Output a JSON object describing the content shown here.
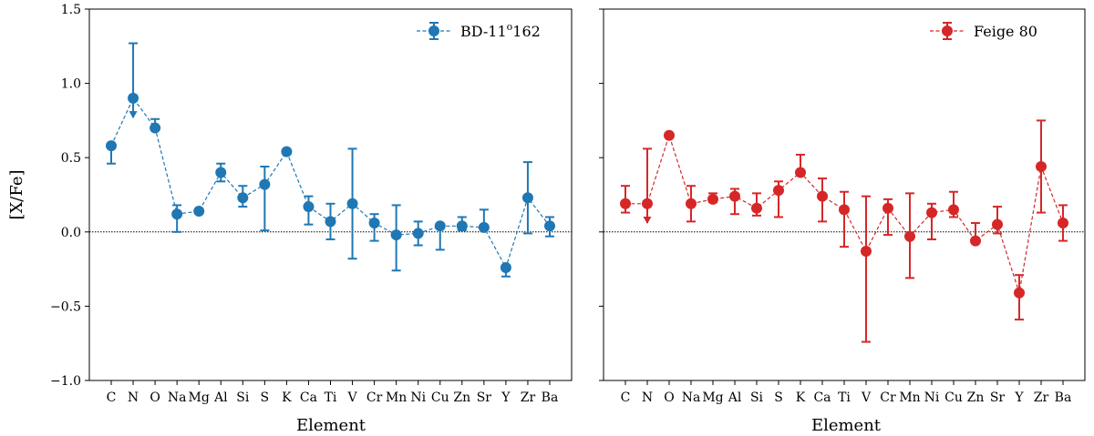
{
  "figure": {
    "ylabel": "[X/Fe]",
    "xlabel": "Element"
  },
  "chart_data": [
    {
      "type": "line",
      "series_name": "BD-11°162",
      "legend_label": "BD-11",
      "legend_sup": "o",
      "legend_tail": "162",
      "color": "#1f77b4",
      "legend_position": "top-right",
      "xlabel": "Element",
      "ylabel": "[X/Fe]",
      "ylim": [
        -1.0,
        1.5
      ],
      "yticks": [
        -1.0,
        -0.5,
        0.0,
        0.5,
        1.0,
        1.5
      ],
      "ytick_labels": [
        "−1.0",
        "−0.5",
        "0.0",
        "0.5",
        "1.0",
        "1.5"
      ],
      "reference_line": 0.0,
      "categories": [
        "C",
        "N",
        "O",
        "Na",
        "Mg",
        "Al",
        "Si",
        "S",
        "K",
        "Ca",
        "Ti",
        "V",
        "Cr",
        "Mn",
        "Ni",
        "Cu",
        "Zn",
        "Sr",
        "Y",
        "Zr",
        "Ba"
      ],
      "values": [
        0.58,
        0.9,
        0.7,
        0.12,
        0.14,
        0.4,
        0.23,
        0.32,
        0.54,
        0.17,
        0.07,
        0.19,
        0.06,
        -0.02,
        -0.01,
        0.04,
        0.04,
        0.03,
        -0.24,
        0.23,
        0.04
      ],
      "err_lower": [
        0.12,
        0.0,
        0.0,
        0.12,
        0.0,
        0.06,
        0.06,
        0.31,
        0.0,
        0.12,
        0.12,
        0.37,
        0.12,
        0.24,
        0.08,
        0.16,
        0.03,
        0.0,
        0.06,
        0.24,
        0.07
      ],
      "err_upper": [
        0.0,
        0.37,
        0.06,
        0.06,
        0.0,
        0.06,
        0.08,
        0.12,
        0.0,
        0.07,
        0.12,
        0.37,
        0.06,
        0.2,
        0.08,
        0.0,
        0.06,
        0.12,
        0.0,
        0.24,
        0.06
      ],
      "upper_limit": [
        false,
        true,
        false,
        false,
        false,
        false,
        false,
        false,
        false,
        false,
        false,
        false,
        false,
        false,
        false,
        false,
        false,
        false,
        false,
        false,
        false
      ],
      "upper_limit_length": 0.13
    },
    {
      "type": "line",
      "series_name": "Feige 80",
      "legend_label": "Feige 80",
      "legend_sup": "",
      "legend_tail": "",
      "color": "#d62728",
      "legend_position": "top-right",
      "xlabel": "Element",
      "ylabel": "",
      "ylim": [
        -1.0,
        1.5
      ],
      "yticks": [
        -1.0,
        -0.5,
        0.0,
        0.5,
        1.0,
        1.5
      ],
      "ytick_labels": [],
      "reference_line": 0.0,
      "categories": [
        "C",
        "N",
        "O",
        "Na",
        "Mg",
        "Al",
        "Si",
        "S",
        "K",
        "Ca",
        "Ti",
        "V",
        "Cr",
        "Mn",
        "Ni",
        "Cu",
        "Zn",
        "Sr",
        "Y",
        "Zr",
        "Ba"
      ],
      "values": [
        0.19,
        0.19,
        0.65,
        0.19,
        0.22,
        0.24,
        0.16,
        0.28,
        0.4,
        0.24,
        0.15,
        -0.13,
        0.16,
        -0.03,
        0.13,
        0.15,
        -0.06,
        0.05,
        -0.41,
        0.44,
        0.06
      ],
      "err_lower": [
        0.06,
        0.0,
        0.0,
        0.12,
        0.02,
        0.12,
        0.05,
        0.18,
        0.0,
        0.17,
        0.25,
        0.61,
        0.18,
        0.28,
        0.18,
        0.05,
        0.0,
        0.06,
        0.18,
        0.31,
        0.12
      ],
      "err_upper": [
        0.12,
        0.37,
        0.0,
        0.12,
        0.04,
        0.05,
        0.1,
        0.06,
        0.12,
        0.12,
        0.12,
        0.37,
        0.06,
        0.29,
        0.06,
        0.12,
        0.12,
        0.12,
        0.12,
        0.31,
        0.12
      ],
      "upper_limit": [
        false,
        true,
        false,
        false,
        false,
        false,
        false,
        false,
        false,
        false,
        false,
        false,
        false,
        false,
        false,
        false,
        false,
        false,
        false,
        false,
        false
      ],
      "upper_limit_length": 0.13
    }
  ]
}
